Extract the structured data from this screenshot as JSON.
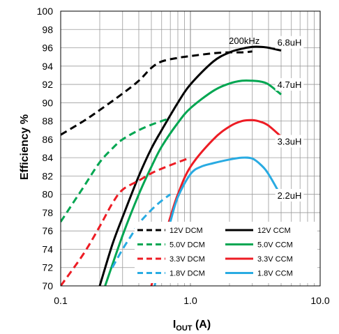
{
  "chart_data": {
    "type": "line",
    "xlabel": "IOUT (A)",
    "ylabel": "Efficiency %",
    "x_scale": "log",
    "xlim": [
      0.1,
      10
    ],
    "ylim": [
      70,
      100
    ],
    "x_ticks": [
      "0.1",
      "1.0",
      "10.0"
    ],
    "y_ticks": [
      "70",
      "72",
      "74",
      "76",
      "78",
      "80",
      "82",
      "84",
      "86",
      "88",
      "90",
      "92",
      "94",
      "96",
      "98",
      "100"
    ],
    "grid": true,
    "legend_position": "bottom-right",
    "annotations": [
      {
        "text": "200kHz",
        "x": 2.6,
        "y": 96.8
      },
      {
        "text": "6.8uH",
        "x": 5.8,
        "y": 96.6
      },
      {
        "text": "4.7uH",
        "x": 5.8,
        "y": 92.0
      },
      {
        "text": "3.3uH",
        "x": 5.8,
        "y": 85.8
      },
      {
        "text": "2.2uH",
        "x": 5.8,
        "y": 79.9
      }
    ],
    "series": [
      {
        "name": "12V DCM",
        "color": "#000000",
        "dash": true,
        "x": [
          0.1,
          0.15,
          0.2,
          0.3,
          0.4,
          0.5,
          0.6,
          0.8,
          1.0,
          1.5,
          2.0,
          2.5,
          3.0
        ],
        "y": [
          86.5,
          88.0,
          89.2,
          91.0,
          92.4,
          93.8,
          94.5,
          94.9,
          95.1,
          95.4,
          95.5,
          95.5,
          95.6
        ]
      },
      {
        "name": "12V CCM",
        "color": "#000000",
        "dash": false,
        "x": [
          0.2,
          0.25,
          0.3,
          0.4,
          0.5,
          0.6,
          0.8,
          1.0,
          1.5,
          2.0,
          2.5,
          3.0,
          3.5,
          4.0,
          5.0
        ],
        "y": [
          70.0,
          74.5,
          77.5,
          82.0,
          85.0,
          87.0,
          90.0,
          92.0,
          94.5,
          95.5,
          95.9,
          96.1,
          96.1,
          96.0,
          95.7
        ]
      },
      {
        "name": "5.0V DCM",
        "color": "#00A651",
        "dash": true,
        "x": [
          0.1,
          0.15,
          0.2,
          0.25,
          0.3,
          0.4,
          0.5,
          0.6,
          0.7
        ],
        "y": [
          77.0,
          80.8,
          83.5,
          85.0,
          86.0,
          87.0,
          87.6,
          88.0,
          88.3
        ]
      },
      {
        "name": "5.0V CCM",
        "color": "#00A651",
        "dash": false,
        "x": [
          0.22,
          0.3,
          0.4,
          0.5,
          0.6,
          0.8,
          1.0,
          1.5,
          2.0,
          2.5,
          3.0,
          3.5,
          4.0,
          5.0
        ],
        "y": [
          70.0,
          75.5,
          80.0,
          83.0,
          85.2,
          87.8,
          89.4,
          91.3,
          92.1,
          92.4,
          92.4,
          92.3,
          92.0,
          90.9
        ]
      },
      {
        "name": "3.3V DCM",
        "color": "#ED1C24",
        "dash": true,
        "x": [
          0.1,
          0.15,
          0.2,
          0.25,
          0.3,
          0.4,
          0.5,
          0.6,
          0.8,
          1.0
        ],
        "y": [
          70.0,
          73.5,
          76.5,
          79.0,
          80.5,
          81.5,
          82.3,
          82.8,
          83.5,
          84.0
        ]
      },
      {
        "name": "3.3V CCM",
        "color": "#ED1C24",
        "dash": false,
        "x": [
          0.5,
          0.6,
          0.7,
          0.8,
          1.0,
          1.5,
          2.0,
          2.5,
          3.0,
          3.5,
          4.0,
          5.0
        ],
        "y": [
          70.0,
          74.3,
          77.5,
          80.0,
          83.0,
          86.0,
          87.4,
          88.0,
          88.1,
          87.9,
          87.5,
          86.3
        ]
      },
      {
        "name": "1.8V DCM",
        "color": "#29ABE2",
        "dash": true,
        "x": [
          0.25,
          0.3,
          0.35,
          0.4,
          0.5,
          0.6,
          0.7
        ],
        "y": [
          72.0,
          74.0,
          75.5,
          76.8,
          78.3,
          79.3,
          80.0
        ]
      },
      {
        "name": "1.8V CCM",
        "color": "#29ABE2",
        "dash": false,
        "x": [
          0.53,
          0.6,
          0.7,
          0.8,
          1.0,
          1.2,
          1.5,
          2.0,
          2.5,
          3.0,
          3.5,
          4.0,
          5.0
        ],
        "y": [
          70.0,
          73.5,
          77.0,
          79.7,
          82.2,
          83.0,
          83.4,
          83.8,
          84.0,
          83.9,
          83.2,
          82.2,
          79.8
        ]
      }
    ]
  }
}
